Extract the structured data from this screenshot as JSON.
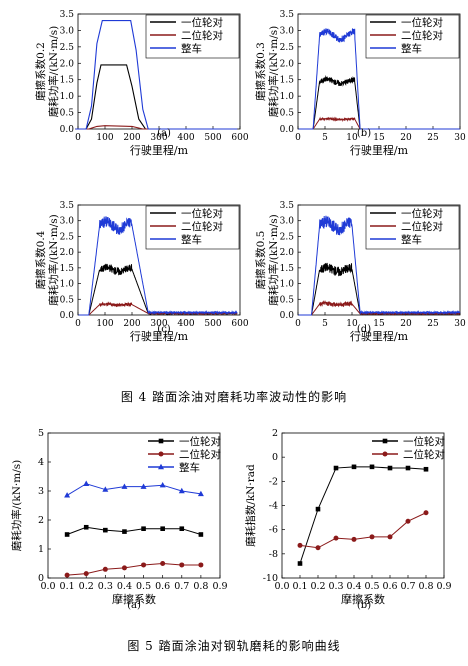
{
  "figure4": {
    "caption": "图 4    踏面涂油对磨耗功率波动性的影响",
    "panels": [
      {
        "sub": "(a)",
        "friction_label": "磨擦系数0.2",
        "ylabel": "磨耗功率/(kN·m/s)",
        "xlabel": "行驶里程/m"
      },
      {
        "sub": "(b)",
        "friction_label": "磨擦系数0.3",
        "ylabel": "磨耗功率/(kN·m/s)",
        "xlabel": "行驶里程/m"
      },
      {
        "sub": "(c)",
        "friction_label": "磨擦系数0.4",
        "ylabel": "磨耗功率/(kN·m/s)",
        "xlabel": "行驶里程/m"
      },
      {
        "sub": "(d)",
        "friction_label": "磨擦系数0.5",
        "ylabel": "磨耗功率/(kN·m/s)",
        "xlabel": "行驶里程/m"
      }
    ]
  },
  "figure5": {
    "caption": "图 5    踏面涂油对钢轨磨耗的影响曲线",
    "panels": [
      {
        "sub": "(a)",
        "ylabel": "磨耗功率/(kN·m/s)",
        "xlabel": "摩擦系数"
      },
      {
        "sub": "(b)",
        "ylabel": "磨耗指数/kN·rad",
        "xlabel": "摩擦系数"
      }
    ]
  },
  "colors": {
    "black": "#000000",
    "red": "#8b1a1a",
    "blue": "#1f3ad6"
  },
  "chart_data": [
    {
      "id": "fig4a",
      "type": "line",
      "xlim": [
        0,
        600
      ],
      "ylim": [
        0,
        3.5
      ],
      "xticks": [
        "0",
        "100",
        "200",
        "300",
        "400",
        "500",
        "600"
      ],
      "yticks": [
        "0.0",
        "0.5",
        "1.0",
        "1.5",
        "2.0",
        "2.5",
        "3.0",
        "3.5"
      ],
      "series": [
        {
          "name": "一位轮对",
          "color": "#000000",
          "values": [
            [
              -10,
              0.0
            ],
            [
              30,
              0.0
            ],
            [
              50,
              0.3
            ],
            [
              70,
              1.4
            ],
            [
              85,
              1.95
            ],
            [
              180,
              1.95
            ],
            [
              200,
              1.3
            ],
            [
              225,
              0.3
            ],
            [
              250,
              0.0
            ],
            [
              590,
              0.0
            ]
          ]
        },
        {
          "name": "二位轮对",
          "color": "#8b1a1a",
          "values": [
            [
              -10,
              0.0
            ],
            [
              40,
              0.0
            ],
            [
              70,
              0.08
            ],
            [
              100,
              0.1
            ],
            [
              200,
              0.08
            ],
            [
              240,
              0.0
            ],
            [
              590,
              0.0
            ]
          ]
        },
        {
          "name": "整车",
          "color": "#1f3ad6",
          "values": [
            [
              -10,
              0.0
            ],
            [
              30,
              0.0
            ],
            [
              50,
              0.7
            ],
            [
              70,
              2.6
            ],
            [
              90,
              3.3
            ],
            [
              195,
              3.3
            ],
            [
              215,
              2.4
            ],
            [
              240,
              0.6
            ],
            [
              260,
              0.0
            ],
            [
              590,
              0.0
            ]
          ]
        }
      ]
    },
    {
      "id": "fig4b",
      "type": "line",
      "xlim": [
        0,
        30
      ],
      "ylim": [
        0,
        3.5
      ],
      "xticks": [
        "0",
        "5",
        "10",
        "15",
        "20",
        "25",
        "30"
      ],
      "yticks": [
        "0.0",
        "0.5",
        "1.0",
        "1.5",
        "2.0",
        "2.5",
        "3.0",
        "3.5"
      ],
      "series": [
        {
          "name": "一位轮对",
          "color": "#000000",
          "level": 1.45,
          "amp": 0.08,
          "rise": [
            2.8,
            4.0
          ],
          "fall": [
            10.5,
            11.5
          ],
          "end": 30
        },
        {
          "name": "二位轮对",
          "color": "#8b1a1a",
          "level": 0.3,
          "amp": 0.03,
          "rise": [
            2.8,
            4.0
          ],
          "fall": [
            10.5,
            11.5
          ],
          "end": 30
        },
        {
          "name": "整车",
          "color": "#1f3ad6",
          "level": 2.85,
          "amp": 0.1,
          "rise": [
            2.8,
            4.0
          ],
          "fall": [
            10.5,
            11.5
          ],
          "end": 30
        }
      ]
    },
    {
      "id": "fig4c",
      "type": "line",
      "xlim": [
        0,
        600
      ],
      "ylim": [
        0,
        3.5
      ],
      "xticks": [
        "0",
        "100",
        "200",
        "300",
        "400",
        "500",
        "600"
      ],
      "yticks": [
        "0.0",
        "0.5",
        "1.0",
        "1.5",
        "2.0",
        "2.5",
        "3.0",
        "3.5"
      ],
      "series": [
        {
          "name": "一位轮对",
          "color": "#000000",
          "level": 1.45,
          "amp": 0.12,
          "rise": [
            40,
            80
          ],
          "fall": [
            200,
            260
          ],
          "end": 590,
          "tail": 0.05
        },
        {
          "name": "二位轮对",
          "color": "#8b1a1a",
          "level": 0.33,
          "amp": 0.05,
          "rise": [
            40,
            80
          ],
          "fall": [
            200,
            260
          ],
          "end": 590,
          "tail": 0.05
        },
        {
          "name": "整车",
          "color": "#1f3ad6",
          "level": 2.85,
          "amp": 0.18,
          "rise": [
            40,
            80
          ],
          "fall": [
            200,
            260
          ],
          "end": 590,
          "tail": 0.08
        }
      ]
    },
    {
      "id": "fig4d",
      "type": "line",
      "xlim": [
        0,
        30
      ],
      "ylim": [
        0,
        3.5
      ],
      "xticks": [
        "0",
        "5",
        "10",
        "15",
        "20",
        "25",
        "30"
      ],
      "yticks": [
        "0.0",
        "0.5",
        "1.0",
        "1.5",
        "2.0",
        "2.5",
        "3.0",
        "3.5"
      ],
      "series": [
        {
          "name": "一位轮对",
          "color": "#000000",
          "level": 1.45,
          "amp": 0.15,
          "rise": [
            2.5,
            4.0
          ],
          "fall": [
            10.0,
            11.5
          ],
          "end": 30,
          "tail": 0.04
        },
        {
          "name": "二位轮对",
          "color": "#8b1a1a",
          "level": 0.35,
          "amp": 0.07,
          "rise": [
            2.5,
            4.0
          ],
          "fall": [
            10.0,
            11.5
          ],
          "end": 30,
          "tail": 0.04
        },
        {
          "name": "整车",
          "color": "#1f3ad6",
          "level": 2.85,
          "amp": 0.2,
          "rise": [
            2.5,
            4.0
          ],
          "fall": [
            10.0,
            11.5
          ],
          "end": 30,
          "tail": 0.08
        }
      ]
    },
    {
      "id": "fig5a",
      "type": "line",
      "xlim": [
        0.0,
        0.9
      ],
      "ylim": [
        0,
        5
      ],
      "xticks": [
        "0.0",
        "0.1",
        "0.2",
        "0.3",
        "0.4",
        "0.5",
        "0.6",
        "0.7",
        "0.8",
        "0.9"
      ],
      "yticks": [
        "0",
        "1",
        "2",
        "3",
        "4",
        "5"
      ],
      "x": [
        0.1,
        0.2,
        0.3,
        0.4,
        0.5,
        0.6,
        0.7,
        0.8
      ],
      "series": [
        {
          "name": "一位轮对",
          "color": "#000000",
          "marker": "square",
          "values": [
            1.5,
            1.75,
            1.65,
            1.6,
            1.7,
            1.7,
            1.7,
            1.5
          ]
        },
        {
          "name": "二位轮对",
          "color": "#8b1a1a",
          "marker": "circle",
          "values": [
            0.1,
            0.15,
            0.3,
            0.35,
            0.45,
            0.5,
            0.45,
            0.45
          ]
        },
        {
          "name": "整车",
          "color": "#1f3ad6",
          "marker": "triangle",
          "values": [
            2.85,
            3.25,
            3.05,
            3.15,
            3.15,
            3.2,
            3.0,
            2.9
          ]
        }
      ]
    },
    {
      "id": "fig5b",
      "type": "line",
      "xlim": [
        0.0,
        0.9
      ],
      "ylim": [
        -10,
        2
      ],
      "xticks": [
        "0.0",
        "0.1",
        "0.2",
        "0.3",
        "0.4",
        "0.5",
        "0.6",
        "0.7",
        "0.8",
        "0.9"
      ],
      "yticks": [
        "-10",
        "-8",
        "-6",
        "-4",
        "-2",
        "0",
        "2"
      ],
      "x": [
        0.1,
        0.2,
        0.3,
        0.4,
        0.5,
        0.6,
        0.7,
        0.8
      ],
      "series": [
        {
          "name": "一位轮对",
          "color": "#000000",
          "marker": "square",
          "values": [
            -8.8,
            -4.3,
            -0.9,
            -0.8,
            -0.8,
            -0.9,
            -0.9,
            -1.0
          ]
        },
        {
          "name": "二位轮对",
          "color": "#8b1a1a",
          "marker": "circle",
          "values": [
            -7.3,
            -7.5,
            -6.7,
            -6.8,
            -6.6,
            -6.6,
            -5.3,
            -4.6
          ]
        }
      ]
    }
  ]
}
